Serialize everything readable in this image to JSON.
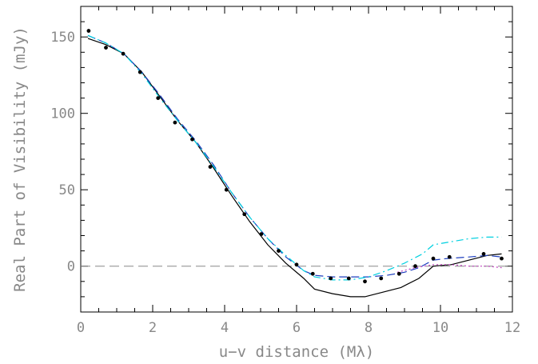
{
  "chart_data": {
    "type": "scatter",
    "title": "",
    "xlabel": "u−v distance (Mλ)",
    "ylabel": "Real Part of Visibility (mJy)",
    "xlim": [
      0,
      12
    ],
    "ylim": [
      -30,
      170
    ],
    "xticks": [
      "0",
      "2",
      "4",
      "6",
      "8",
      "10",
      "12"
    ],
    "xtick_values": [
      0,
      2,
      4,
      6,
      8,
      10,
      12
    ],
    "yticks": [
      "0",
      "50",
      "100",
      "150"
    ],
    "ytick_values": [
      0,
      50,
      100,
      150
    ],
    "grid": false,
    "zero_line": {
      "y": 0,
      "style": "dashed",
      "color": "#888888"
    },
    "points": {
      "x": [
        0.22,
        0.7,
        1.18,
        1.65,
        2.15,
        2.62,
        3.1,
        3.6,
        4.05,
        4.55,
        5.02,
        5.5,
        6.0,
        6.45,
        6.95,
        7.45,
        7.9,
        8.35,
        8.85,
        9.3,
        9.8,
        10.25,
        11.2,
        11.7
      ],
      "y": [
        154,
        143,
        139,
        127,
        110,
        94,
        83,
        65,
        50,
        34,
        21,
        10,
        1,
        -5,
        -8,
        -8,
        -10,
        -8,
        -5,
        0,
        5,
        6,
        8,
        5
      ],
      "color": "#000000"
    },
    "series": [
      {
        "style": "solid",
        "color": "#000000",
        "x": [
          0.2,
          0.7,
          1.2,
          1.7,
          2.2,
          2.7,
          3.2,
          3.7,
          4.2,
          4.7,
          5.2,
          5.7,
          6.2,
          6.5,
          7.0,
          7.5,
          7.9,
          8.4,
          8.9,
          9.4,
          9.8,
          10.3,
          10.8,
          11.3,
          11.7
        ],
        "y": [
          149,
          145,
          139,
          127,
          111,
          95,
          81,
          64,
          46,
          29,
          14,
          2,
          -8,
          -15,
          -18,
          -20,
          -20,
          -17,
          -14,
          -8,
          0,
          1,
          4,
          7,
          8
        ]
      },
      {
        "style": "dashed",
        "color": "#1f3fbf",
        "x": [
          0.2,
          0.7,
          1.2,
          1.7,
          2.2,
          2.7,
          3.2,
          3.7,
          4.2,
          4.7,
          5.2,
          5.7,
          6.2,
          6.5,
          7.0,
          7.5,
          8.0,
          8.5,
          9.0,
          9.4,
          9.8,
          10.2,
          10.8,
          11.3,
          11.7
        ],
        "y": [
          151,
          146,
          139,
          127,
          112,
          96,
          82,
          66,
          48,
          32,
          18,
          6,
          -3,
          -6,
          -7,
          -7,
          -7,
          -6,
          -4,
          -1,
          4,
          5,
          6,
          7,
          6
        ]
      },
      {
        "style": "dashdot",
        "color": "#00d0e0",
        "x": [
          0.2,
          0.7,
          1.2,
          1.7,
          2.2,
          2.7,
          3.2,
          3.7,
          4.2,
          4.7,
          5.2,
          5.7,
          6.2,
          6.5,
          7.0,
          7.5,
          8.0,
          8.5,
          9.0,
          9.5,
          9.8,
          10.3,
          10.8,
          11.3,
          11.7
        ],
        "y": [
          151,
          146,
          139,
          126,
          110,
          95,
          81,
          65,
          48,
          32,
          18,
          7,
          -3,
          -7,
          -9,
          -9,
          -7,
          -3,
          2,
          8,
          14,
          16,
          18,
          19,
          19
        ]
      },
      {
        "style": "dotted",
        "color": "#c040c0",
        "x": [
          8.8,
          9.3,
          9.8,
          10.3,
          10.8,
          11.3,
          11.7
        ],
        "y": [
          -4,
          -1,
          1,
          1,
          0,
          0,
          -1
        ]
      }
    ]
  }
}
